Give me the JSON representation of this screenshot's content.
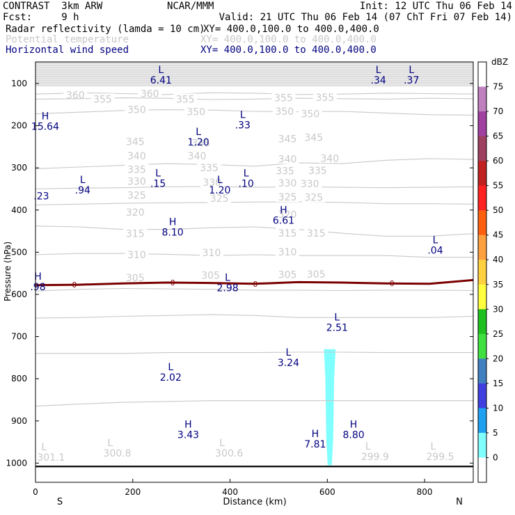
{
  "header": {
    "left1": "CONTRAST  3km ARW",
    "center1": "NCAR/MMM",
    "right1": "Init: 12 UTC Thu 06 Feb 14",
    "left2": "Fcst:     9 h",
    "right2": "Valid: 21 UTC Thu 06 Feb 14 (07 ChT Fri 07 Feb 14)",
    "fields": [
      {
        "name": "Radar reflectivity (lamda = 10 cm)",
        "xy": "XY= 400.0,100.0 to 400.0,400.0",
        "color": "#000000"
      },
      {
        "name": "Potential temperature",
        "xy": "XY= 400.0,100.0 to 400.0,400.0",
        "color": "#c8c8c8"
      },
      {
        "name": "Horizontal wind speed",
        "xy": "XY= 400.0,100.0 to 400.0,400.0",
        "color": "#000080"
      }
    ]
  },
  "chart_data": {
    "type": "cross-section",
    "xlabel": "Distance (km)",
    "ylabel": "Pressure (hPa)",
    "xlim": [
      0,
      900
    ],
    "ylim": [
      1050,
      50
    ],
    "x_ticks": [
      0,
      200,
      400,
      600,
      800
    ],
    "y_ticks": [
      100,
      200,
      300,
      400,
      500,
      600,
      700,
      800,
      900,
      1000
    ],
    "x_end_labels": {
      "left": "S",
      "right": "N"
    },
    "theta_isolines": [
      {
        "label": "360",
        "p": [
          125,
          122,
          124,
          126,
          122,
          123,
          126,
          125,
          123,
          124,
          125
        ],
        "label_pos": [
          [
            82,
            127
          ],
          [
            235,
            124
          ]
        ]
      },
      {
        "label": "355",
        "p": [
          137,
          136,
          134,
          135,
          138,
          137,
          135,
          136,
          137,
          135,
          136
        ],
        "label_pos": [
          [
            138,
            137
          ],
          [
            308,
            137
          ],
          [
            510,
            134
          ],
          [
            595,
            133
          ]
        ]
      },
      {
        "label": "350",
        "p": [
          172,
          168,
          164,
          162,
          163,
          166,
          167,
          166,
          170,
          174,
          175
        ],
        "label_pos": [
          [
            208,
            162
          ],
          [
            330,
            167
          ],
          [
            512,
            166
          ],
          [
            565,
            172
          ]
        ]
      },
      {
        "label": "345",
        "p": [
          302,
          298,
          294,
          290,
          292,
          296,
          288,
          290,
          282,
          278,
          280
        ],
        "label_pos": [
          [
            205,
            238
          ],
          [
            340,
            241
          ],
          [
            518,
            231
          ],
          [
            572,
            228
          ]
        ]
      },
      {
        "label": "340",
        "p": [
          350,
          348,
          347,
          345,
          344,
          346,
          345,
          346,
          347,
          346,
          345
        ],
        "label_pos": [
          [
            208,
            272
          ],
          [
            332,
            272
          ],
          [
            518,
            279
          ],
          [
            605,
            277
          ]
        ]
      },
      {
        "label": "335",
        "p": [
          388,
          386,
          384,
          383,
          382,
          381,
          380,
          382,
          385,
          385,
          386
        ],
        "label_pos": [
          [
            208,
            304
          ],
          [
            357,
            300
          ],
          [
            513,
            307
          ],
          [
            580,
            306
          ]
        ]
      },
      {
        "label": "330",
        "p": [
          438,
          440,
          446,
          446,
          442,
          440,
          446,
          455,
          462,
          462,
          456
        ],
        "label_pos": [
          [
            208,
            332
          ],
          [
            363,
            334
          ],
          [
            518,
            336
          ],
          [
            564,
            338
          ]
        ]
      },
      {
        "label": "325",
        "p": [
          506,
          503,
          503,
          505,
          508,
          506,
          508,
          508,
          508,
          512,
          512
        ],
        "label_pos": [
          [
            208,
            365
          ],
          [
            378,
            372
          ],
          [
            518,
            369
          ],
          [
            572,
            370
          ]
        ]
      },
      {
        "label": "320",
        "p": [
          592,
          588,
          586,
          587,
          588,
          590,
          590,
          591,
          590,
          590,
          591
        ],
        "label_pos": [
          [
            205,
            405
          ],
          [
            518,
            410
          ]
        ]
      },
      {
        "label": "315",
        "p": [
          656,
          655,
          652,
          650,
          648,
          650,
          655,
          655,
          655,
          655,
          652
        ],
        "label_pos": [
          [
            205,
            456
          ],
          [
            518,
            455
          ],
          [
            577,
            455
          ]
        ]
      },
      {
        "label": "310",
        "p": [
          740,
          740,
          740,
          738,
          738,
          738,
          737,
          737,
          738,
          738,
          738
        ],
        "label_pos": [
          [
            208,
            506
          ],
          [
            362,
            501
          ],
          [
            518,
            499
          ]
        ]
      },
      {
        "label": "305",
        "p": [
          865,
          860,
          856,
          854,
          852,
          852,
          852,
          852,
          852,
          852,
          852
        ],
        "label_pos": [
          [
            205,
            560
          ],
          [
            360,
            555
          ],
          [
            518,
            553
          ],
          [
            577,
            552
          ]
        ]
      }
    ],
    "theta_min_markers": [
      {
        "x": 12,
        "p": 970,
        "sym": "L",
        "val": "301.1"
      },
      {
        "x": 148,
        "p": 960,
        "sym": "L",
        "val": "300.8"
      },
      {
        "x": 378,
        "p": 960,
        "sym": "L",
        "val": "300.6"
      },
      {
        "x": 678,
        "p": 968,
        "sym": "L",
        "val": "299.9"
      },
      {
        "x": 812,
        "p": 968,
        "sym": "L",
        "val": "299.5"
      }
    ],
    "wind_extrema": [
      {
        "x": 258,
        "p": 75,
        "sym": "L",
        "val": "6.41"
      },
      {
        "x": 705,
        "p": 75,
        "sym": "L",
        "val": ".34"
      },
      {
        "x": 773,
        "p": 75,
        "sym": "L",
        "val": ".37"
      },
      {
        "x": 20,
        "p": 185,
        "sym": "H",
        "val": "15.64"
      },
      {
        "x": 426,
        "p": 182,
        "sym": "L",
        "val": ".33"
      },
      {
        "x": 335,
        "p": 222,
        "sym": "L",
        "val": "1.20"
      },
      {
        "x": 252,
        "p": 320,
        "sym": "L",
        "val": ".15"
      },
      {
        "x": 433,
        "p": 320,
        "sym": "L",
        "val": ".10"
      },
      {
        "x": 379,
        "p": 336,
        "sym": "L",
        "val": "1.20"
      },
      {
        "x": 97,
        "p": 336,
        "sym": "L",
        "val": ".94"
      },
      {
        "x": 12,
        "p": 350,
        "sym": "",
        "val": ".23"
      },
      {
        "x": 510,
        "p": 408,
        "sym": "H",
        "val": "6.61"
      },
      {
        "x": 282,
        "p": 436,
        "sym": "H",
        "val": "8.10"
      },
      {
        "x": 822,
        "p": 479,
        "sym": "L",
        "val": ".04"
      },
      {
        "x": 395,
        "p": 568,
        "sym": "L",
        "val": "2.98"
      },
      {
        "x": 5,
        "p": 565,
        "sym": "H",
        "val": ".98"
      },
      {
        "x": 620,
        "p": 662,
        "sym": "L",
        "val": "2.51"
      },
      {
        "x": 520,
        "p": 745,
        "sym": "L",
        "val": "3.24"
      },
      {
        "x": 278,
        "p": 780,
        "sym": "L",
        "val": "2.02"
      },
      {
        "x": 314,
        "p": 916,
        "sym": "H",
        "val": "3.43"
      },
      {
        "x": 654,
        "p": 916,
        "sym": "H",
        "val": "8.80"
      },
      {
        "x": 575,
        "p": 938,
        "sym": "H",
        "val": "7.81"
      }
    ],
    "zero_line": {
      "label": "0",
      "p": [
        578,
        577,
        574,
        572,
        573,
        575,
        571,
        572,
        574,
        575,
        566
      ]
    },
    "reflectivity_region": {
      "x_km": [
        593,
        617
      ],
      "p_top": 730,
      "p_bottom": 1005,
      "dbz": 5,
      "color": "#80ffff"
    },
    "surface_p": 1008,
    "colorbar": {
      "title": "dBZ",
      "labels": [
        "75",
        "70",
        "65",
        "60",
        "55",
        "50",
        "45",
        "40",
        "35",
        "30",
        "25",
        "20",
        "15",
        "10",
        "5",
        "0"
      ],
      "colors": [
        "#ffffff",
        "#c080c0",
        "#a040a0",
        "#a04060",
        "#c02020",
        "#ff2020",
        "#ff6010",
        "#ffa040",
        "#ffd040",
        "#ffff40",
        "#20c020",
        "#40e040",
        "#4080c0",
        "#4040e0",
        "#20a0f0",
        "#80ffff",
        "#ffffff"
      ]
    }
  }
}
